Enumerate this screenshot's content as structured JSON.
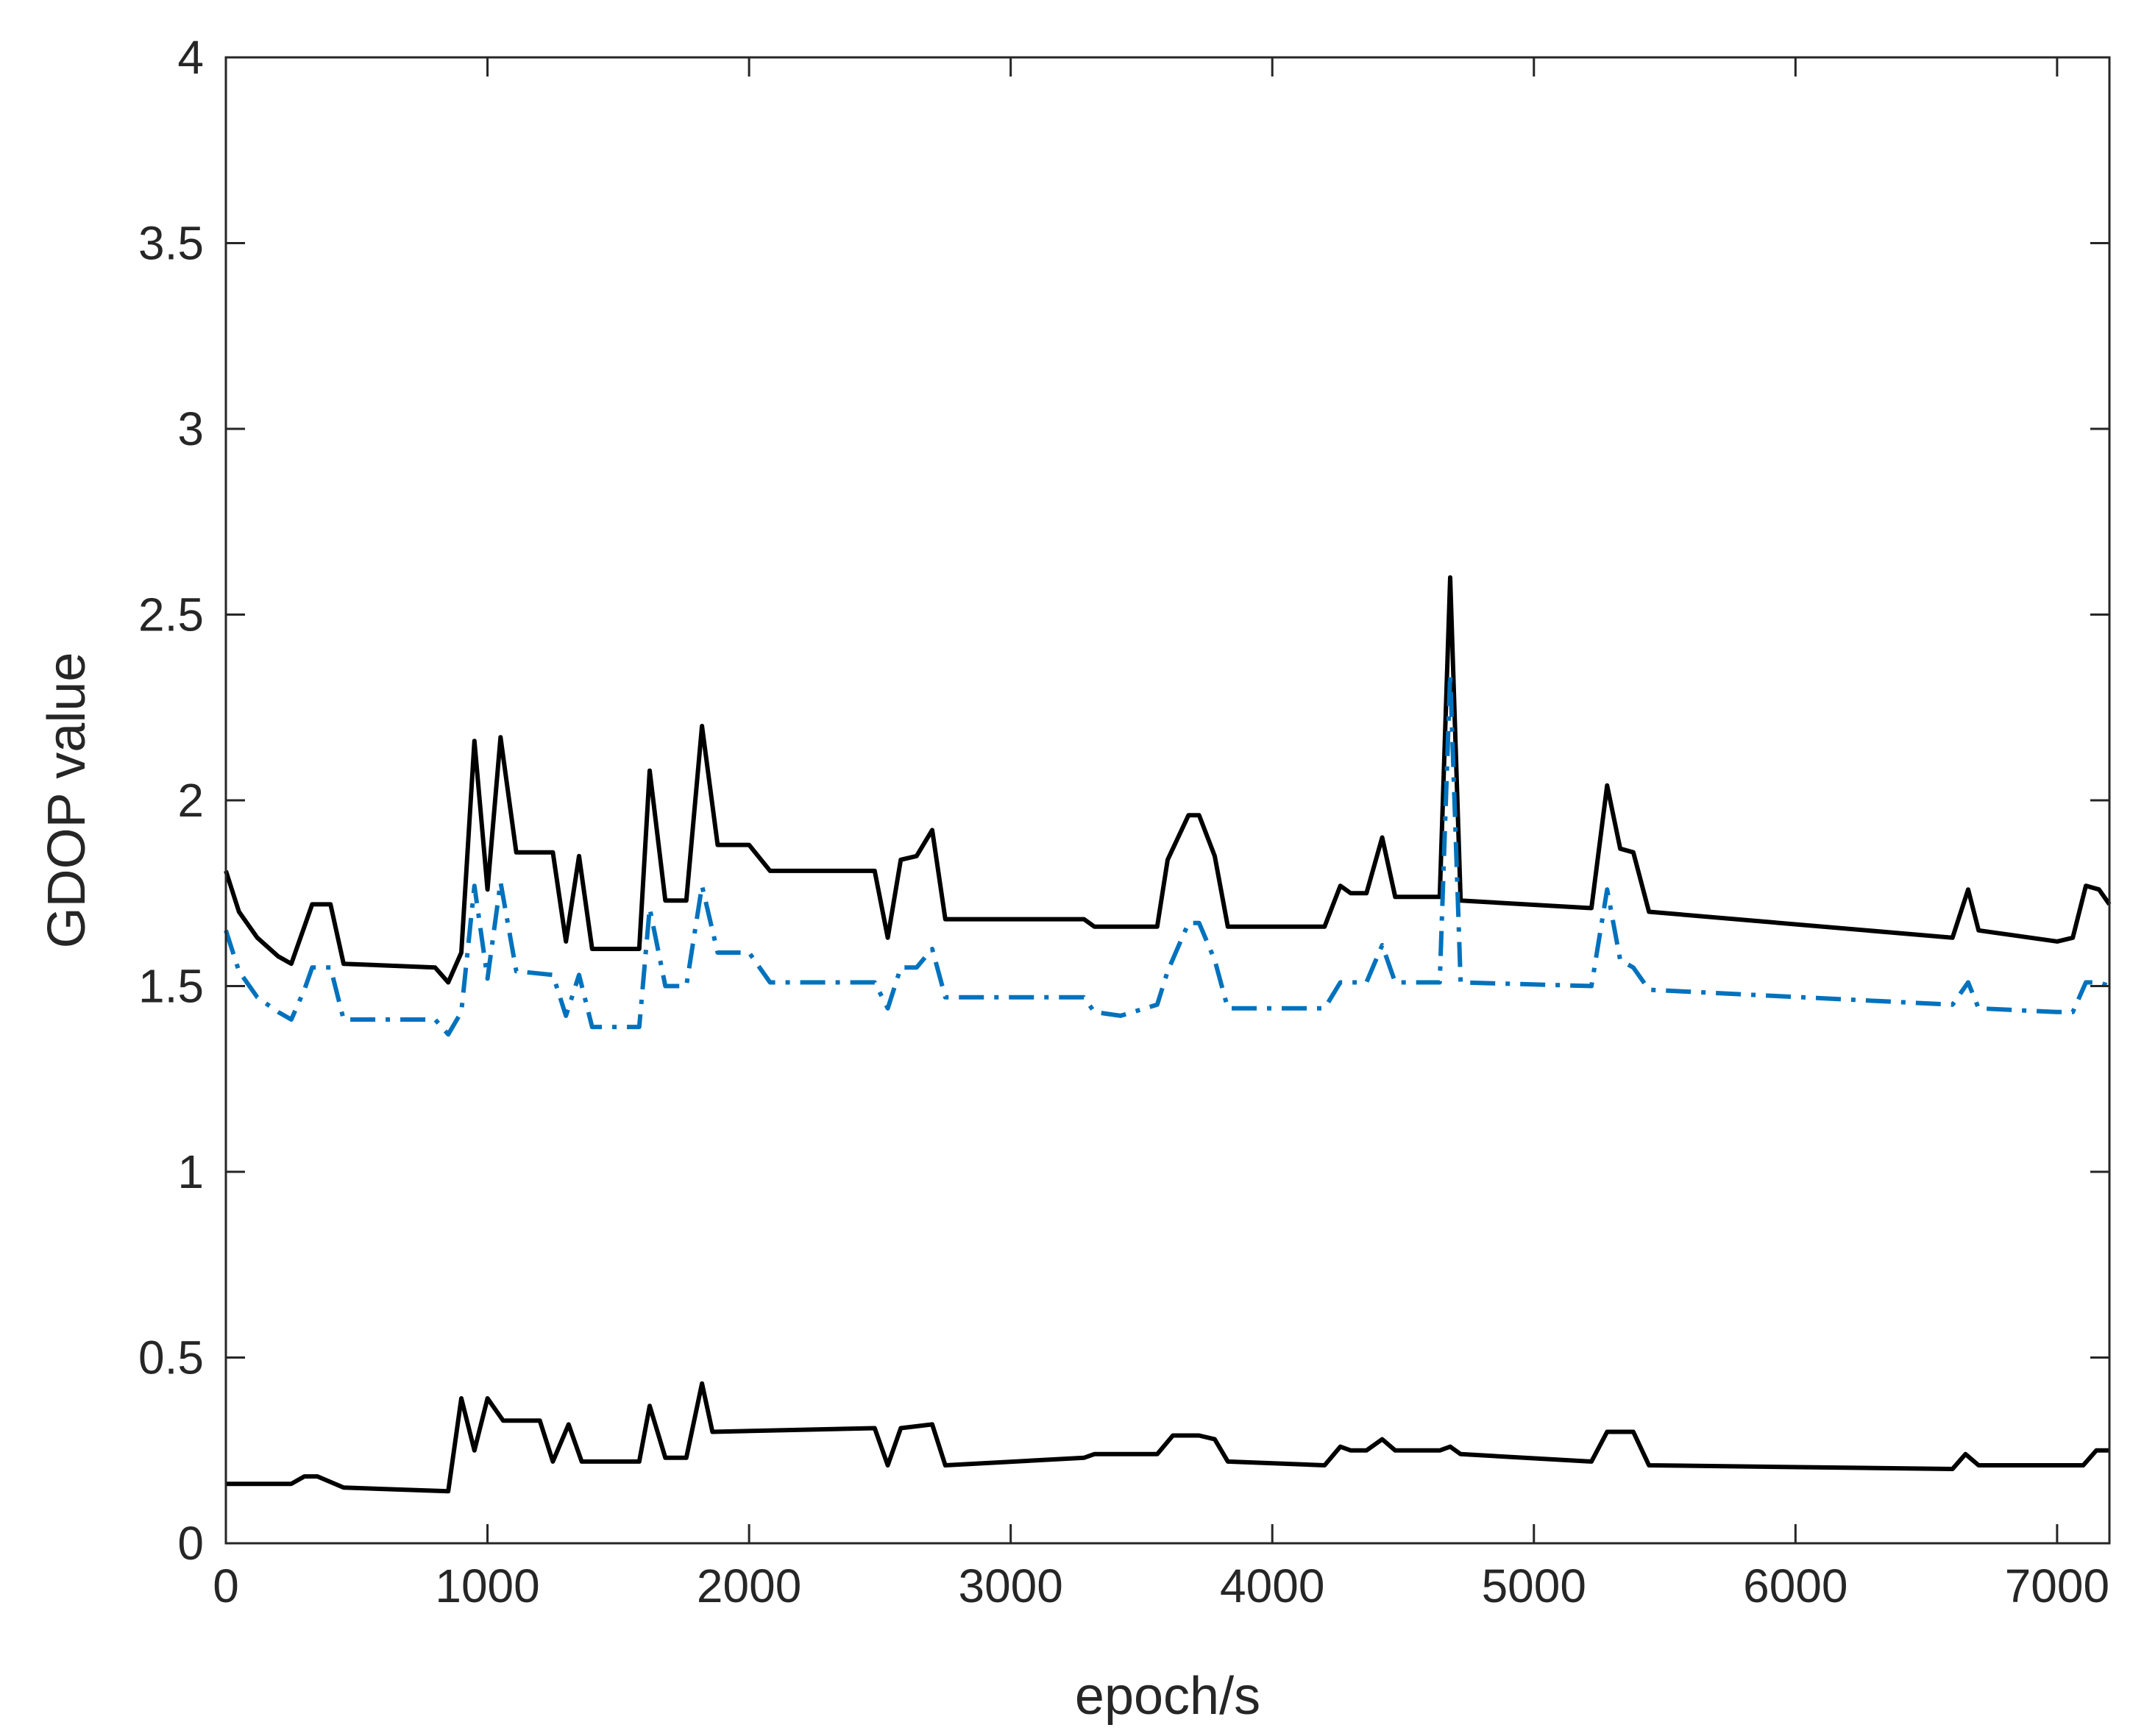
{
  "chart_data": {
    "type": "line",
    "title": "",
    "xlabel": "epoch/s",
    "ylabel": "GDOP value",
    "xlim": [
      0,
      7200
    ],
    "ylim": [
      0,
      4
    ],
    "grid": false,
    "legend": "none",
    "xticks": [
      0,
      1000,
      2000,
      3000,
      4000,
      5000,
      6000,
      7000
    ],
    "xtick_labels": [
      "0",
      "1000",
      "2000",
      "3000",
      "4000",
      "5000",
      "6000",
      "7000"
    ],
    "yticks": [
      0,
      0.5,
      1,
      1.5,
      2,
      2.5,
      3,
      3.5,
      4
    ],
    "ytick_labels": [
      "0",
      "0.5",
      "1",
      "1.5",
      "2",
      "2.5",
      "3",
      "3.5",
      "4"
    ],
    "series": [
      {
        "color": "#000000",
        "style": "solid",
        "points": [
          [
            0,
            1.81
          ],
          [
            50,
            1.7
          ],
          [
            120,
            1.63
          ],
          [
            200,
            1.58
          ],
          [
            250,
            1.56
          ],
          [
            300,
            1.66
          ],
          [
            330,
            1.72
          ],
          [
            400,
            1.72
          ],
          [
            450,
            1.56
          ],
          [
            800,
            1.55
          ],
          [
            850,
            1.51
          ],
          [
            900,
            1.59
          ],
          [
            950,
            2.16
          ],
          [
            1000,
            1.76
          ],
          [
            1050,
            2.17
          ],
          [
            1110,
            1.86
          ],
          [
            1200,
            1.86
          ],
          [
            1250,
            1.86
          ],
          [
            1300,
            1.62
          ],
          [
            1350,
            1.85
          ],
          [
            1400,
            1.6
          ],
          [
            1550,
            1.6
          ],
          [
            1580,
            1.6
          ],
          [
            1620,
            2.08
          ],
          [
            1680,
            1.73
          ],
          [
            1760,
            1.73
          ],
          [
            1820,
            2.2
          ],
          [
            1880,
            1.88
          ],
          [
            2000,
            1.88
          ],
          [
            2080,
            1.81
          ],
          [
            2480,
            1.81
          ],
          [
            2530,
            1.63
          ],
          [
            2580,
            1.84
          ],
          [
            2640,
            1.85
          ],
          [
            2700,
            1.92
          ],
          [
            2750,
            1.68
          ],
          [
            3280,
            1.68
          ],
          [
            3320,
            1.66
          ],
          [
            3560,
            1.66
          ],
          [
            3600,
            1.84
          ],
          [
            3680,
            1.96
          ],
          [
            3720,
            1.96
          ],
          [
            3780,
            1.85
          ],
          [
            3830,
            1.66
          ],
          [
            4200,
            1.66
          ],
          [
            4260,
            1.77
          ],
          [
            4300,
            1.75
          ],
          [
            4360,
            1.75
          ],
          [
            4420,
            1.9
          ],
          [
            4470,
            1.74
          ],
          [
            4610,
            1.74
          ],
          [
            4640,
            1.74
          ],
          [
            4680,
            2.6
          ],
          [
            4720,
            1.73
          ],
          [
            5220,
            1.71
          ],
          [
            5280,
            2.04
          ],
          [
            5330,
            1.87
          ],
          [
            5380,
            1.86
          ],
          [
            5440,
            1.7
          ],
          [
            6600,
            1.63
          ],
          [
            6660,
            1.76
          ],
          [
            6700,
            1.65
          ],
          [
            7000,
            1.62
          ],
          [
            7060,
            1.63
          ],
          [
            7110,
            1.77
          ],
          [
            7160,
            1.76
          ],
          [
            7200,
            1.72
          ]
        ]
      },
      {
        "color": "#0072bd",
        "style": "dashdot",
        "points": [
          [
            0,
            1.65
          ],
          [
            50,
            1.54
          ],
          [
            120,
            1.47
          ],
          [
            200,
            1.43
          ],
          [
            250,
            1.41
          ],
          [
            300,
            1.49
          ],
          [
            330,
            1.55
          ],
          [
            400,
            1.55
          ],
          [
            450,
            1.41
          ],
          [
            800,
            1.41
          ],
          [
            850,
            1.37
          ],
          [
            900,
            1.43
          ],
          [
            950,
            1.77
          ],
          [
            1000,
            1.52
          ],
          [
            1050,
            1.78
          ],
          [
            1110,
            1.54
          ],
          [
            1250,
            1.53
          ],
          [
            1300,
            1.42
          ],
          [
            1350,
            1.53
          ],
          [
            1400,
            1.39
          ],
          [
            1580,
            1.39
          ],
          [
            1620,
            1.71
          ],
          [
            1680,
            1.5
          ],
          [
            1760,
            1.5
          ],
          [
            1820,
            1.77
          ],
          [
            1880,
            1.59
          ],
          [
            2000,
            1.59
          ],
          [
            2080,
            1.51
          ],
          [
            2480,
            1.51
          ],
          [
            2530,
            1.44
          ],
          [
            2580,
            1.55
          ],
          [
            2640,
            1.55
          ],
          [
            2700,
            1.6
          ],
          [
            2750,
            1.47
          ],
          [
            3280,
            1.47
          ],
          [
            3320,
            1.43
          ],
          [
            3420,
            1.42
          ],
          [
            3560,
            1.45
          ],
          [
            3600,
            1.54
          ],
          [
            3680,
            1.67
          ],
          [
            3720,
            1.67
          ],
          [
            3780,
            1.57
          ],
          [
            3830,
            1.44
          ],
          [
            4200,
            1.44
          ],
          [
            4260,
            1.51
          ],
          [
            4300,
            1.51
          ],
          [
            4360,
            1.51
          ],
          [
            4420,
            1.61
          ],
          [
            4470,
            1.51
          ],
          [
            4640,
            1.51
          ],
          [
            4680,
            2.34
          ],
          [
            4720,
            1.51
          ],
          [
            5220,
            1.5
          ],
          [
            5280,
            1.76
          ],
          [
            5330,
            1.57
          ],
          [
            5380,
            1.55
          ],
          [
            5440,
            1.49
          ],
          [
            6600,
            1.45
          ],
          [
            6660,
            1.51
          ],
          [
            6700,
            1.44
          ],
          [
            7000,
            1.43
          ],
          [
            7060,
            1.43
          ],
          [
            7110,
            1.51
          ],
          [
            7160,
            1.51
          ],
          [
            7200,
            1.5
          ]
        ]
      },
      {
        "color": "#000000",
        "style": "solid",
        "points": [
          [
            0,
            0.16
          ],
          [
            250,
            0.16
          ],
          [
            300,
            0.18
          ],
          [
            350,
            0.18
          ],
          [
            450,
            0.15
          ],
          [
            850,
            0.14
          ],
          [
            900,
            0.39
          ],
          [
            950,
            0.25
          ],
          [
            1000,
            0.39
          ],
          [
            1060,
            0.33
          ],
          [
            1200,
            0.33
          ],
          [
            1250,
            0.22
          ],
          [
            1310,
            0.32
          ],
          [
            1360,
            0.22
          ],
          [
            1580,
            0.22
          ],
          [
            1620,
            0.37
          ],
          [
            1680,
            0.23
          ],
          [
            1760,
            0.23
          ],
          [
            1820,
            0.43
          ],
          [
            1860,
            0.3
          ],
          [
            2480,
            0.31
          ],
          [
            2530,
            0.21
          ],
          [
            2580,
            0.31
          ],
          [
            2700,
            0.32
          ],
          [
            2750,
            0.21
          ],
          [
            3280,
            0.23
          ],
          [
            3320,
            0.24
          ],
          [
            3560,
            0.24
          ],
          [
            3620,
            0.29
          ],
          [
            3720,
            0.29
          ],
          [
            3780,
            0.28
          ],
          [
            3830,
            0.22
          ],
          [
            4200,
            0.21
          ],
          [
            4260,
            0.26
          ],
          [
            4300,
            0.25
          ],
          [
            4360,
            0.25
          ],
          [
            4420,
            0.28
          ],
          [
            4470,
            0.25
          ],
          [
            4640,
            0.25
          ],
          [
            4680,
            0.26
          ],
          [
            4720,
            0.24
          ],
          [
            5220,
            0.22
          ],
          [
            5280,
            0.3
          ],
          [
            5380,
            0.3
          ],
          [
            5440,
            0.21
          ],
          [
            6600,
            0.2
          ],
          [
            6650,
            0.24
          ],
          [
            6700,
            0.21
          ],
          [
            7100,
            0.21
          ],
          [
            7150,
            0.25
          ],
          [
            7200,
            0.25
          ]
        ]
      }
    ]
  }
}
